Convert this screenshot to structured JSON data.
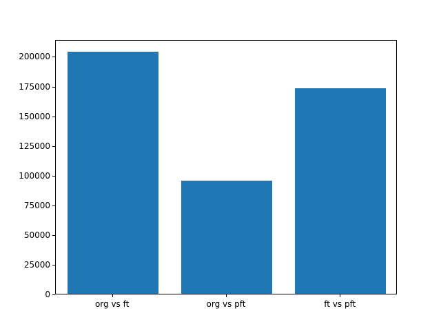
{
  "chart_data": {
    "type": "bar",
    "categories": [
      "org vs ft",
      "org vs pft",
      "ft vs pft"
    ],
    "values": [
      204000,
      95000,
      173000
    ],
    "title": "",
    "xlabel": "",
    "ylabel": "",
    "ylim": [
      0,
      214200
    ],
    "yticks": [
      0,
      25000,
      50000,
      75000,
      100000,
      125000,
      150000,
      175000,
      200000
    ],
    "bar_color": "#1f77b4",
    "axis_color": "#000000",
    "background_color": "#ffffff",
    "grid": false,
    "legend": null,
    "bar_relative_width": 0.8
  }
}
